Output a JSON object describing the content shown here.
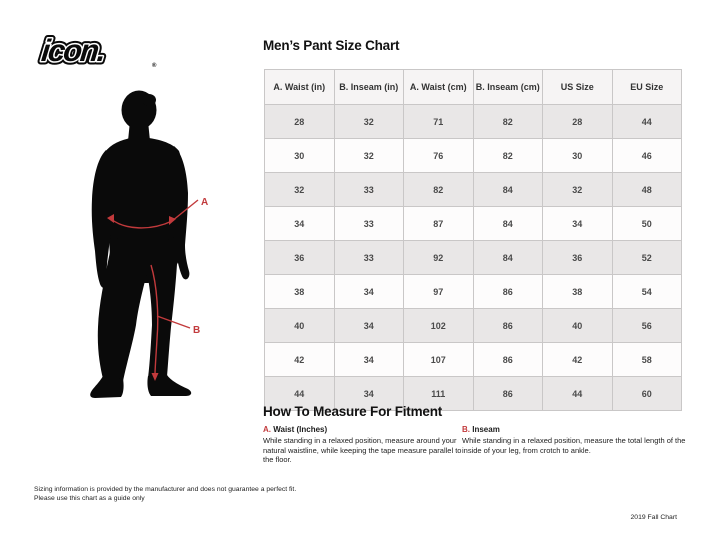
{
  "brand": {
    "logo_text": "icon.",
    "registered_mark": "®"
  },
  "title": "Men’s Pant Size Chart",
  "figure": {
    "label_a": "A",
    "label_b": "B"
  },
  "chart_data": {
    "type": "table",
    "title": "Men’s Pant Size Chart",
    "columns": [
      "A. Waist (in)",
      "B. Inseam (in)",
      "A. Waist (cm)",
      "B. Inseam (cm)",
      "US Size",
      "EU Size"
    ],
    "rows": [
      [
        28,
        32,
        71,
        82,
        28,
        44
      ],
      [
        30,
        32,
        76,
        82,
        30,
        46
      ],
      [
        32,
        33,
        82,
        84,
        32,
        48
      ],
      [
        34,
        33,
        87,
        84,
        34,
        50
      ],
      [
        36,
        33,
        92,
        84,
        36,
        52
      ],
      [
        38,
        34,
        97,
        86,
        38,
        54
      ],
      [
        40,
        34,
        102,
        86,
        40,
        56
      ],
      [
        42,
        34,
        107,
        86,
        42,
        58
      ],
      [
        44,
        34,
        111,
        86,
        44,
        60
      ]
    ]
  },
  "how_to": {
    "heading": "How To Measure For Fitment",
    "items": [
      {
        "label_prefix": "A.",
        "label": "Waist (Inches)",
        "text": "While standing in a relaxed position, measure around your natural waistline, while keeping the tape measure parallel to the floor."
      },
      {
        "label_prefix": "B.",
        "label": "Inseam",
        "text": "While standing in a relaxed position, measure the total length of the inside of your leg, from crotch to ankle."
      }
    ]
  },
  "footer": {
    "disclaimer_line1": "Sizing information is provided by the manufacturer and does not guarantee a perfect fit.",
    "disclaimer_line2": "Please use this chart as a guide only",
    "chart_version": "2019 Fall Chart"
  },
  "colors": {
    "accent_red": "#c23a3c",
    "silhouette_black": "#0a0a0a",
    "row_shade": "#e9e7e7",
    "table_border": "#c9c7c7"
  }
}
